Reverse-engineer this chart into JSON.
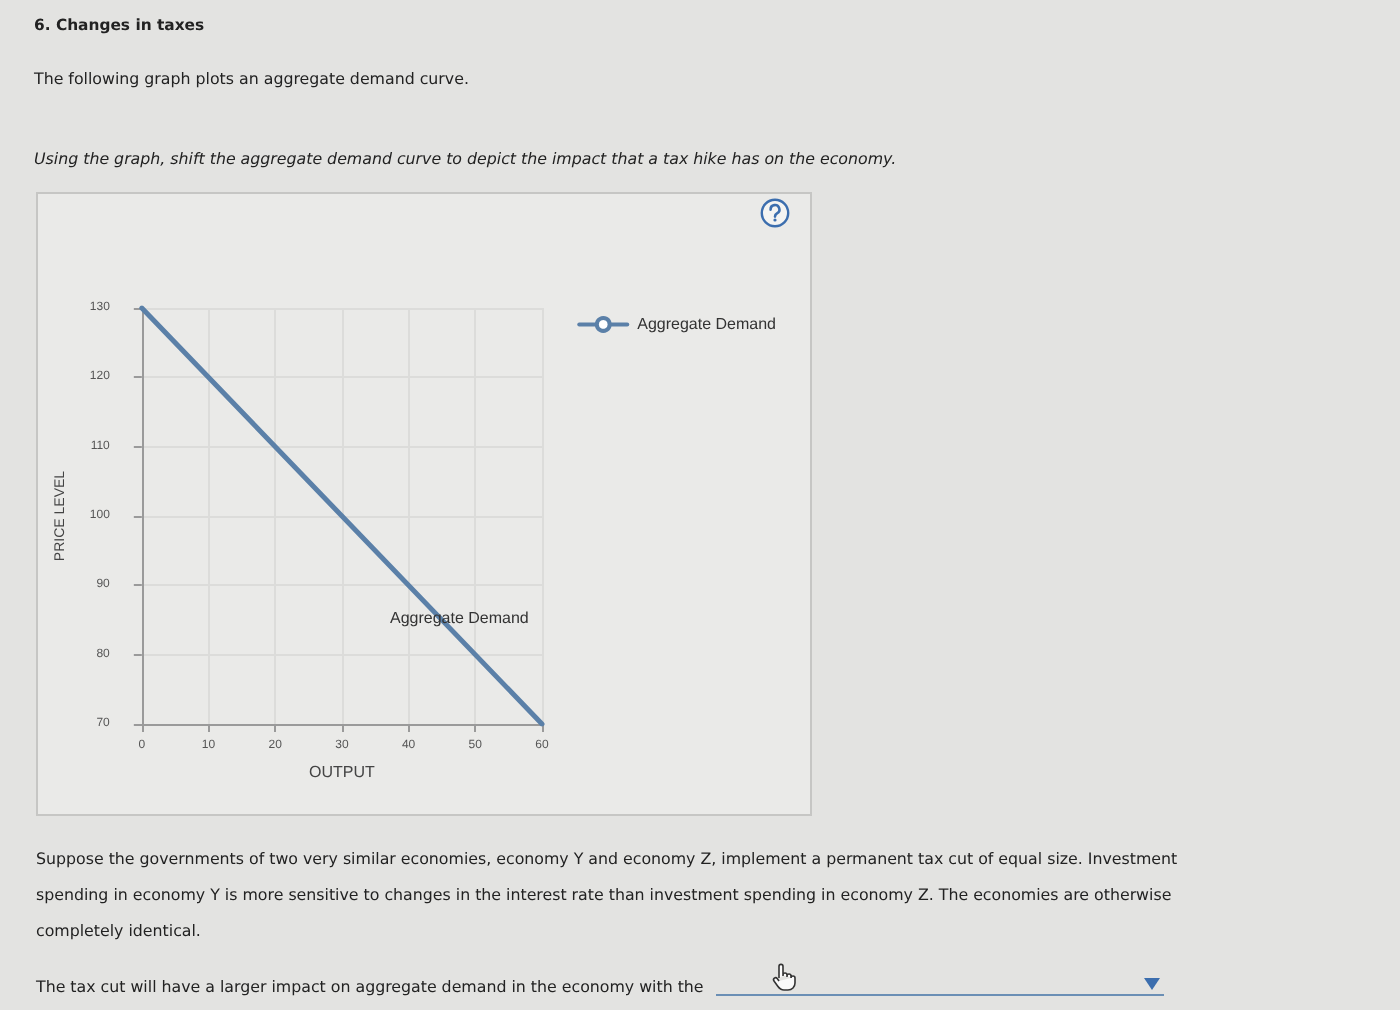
{
  "chart_data": {
    "type": "line",
    "title": "6. Changes in taxes",
    "subtitle": "The following graph plots an aggregate demand curve.",
    "xlabel": "OUTPUT",
    "ylabel": "PRICE LEVEL",
    "x": [
      0,
      60
    ],
    "series": [
      {
        "name": "Aggregate Demand",
        "color": "#5b80a8",
        "values": [
          130,
          70
        ]
      }
    ],
    "xlim": [
      0,
      60
    ],
    "xticks": [
      0,
      10,
      20,
      30,
      40,
      50,
      60
    ],
    "ylim": [
      70,
      130
    ],
    "yticks": [
      70,
      80,
      90,
      100,
      110,
      120,
      130
    ],
    "grid": true,
    "legend": "top right",
    "annotations": [
      "Using the graph, shift the aggregate demand curve to depict the impact that a tax hike has on the economy.",
      "Suppose the governments of two very similar economies, economy Y and economy Z, implement a permanent tax cut of equal size. Investment spending in economy Y is more sensitive to changes in the interest rate than investment spending in economy Z. The economies are otherwise completely identical.",
      "The tax cut will have a larger impact on aggregate demand in the economy with the",
      "Aggregate Demand"
    ]
  }
}
